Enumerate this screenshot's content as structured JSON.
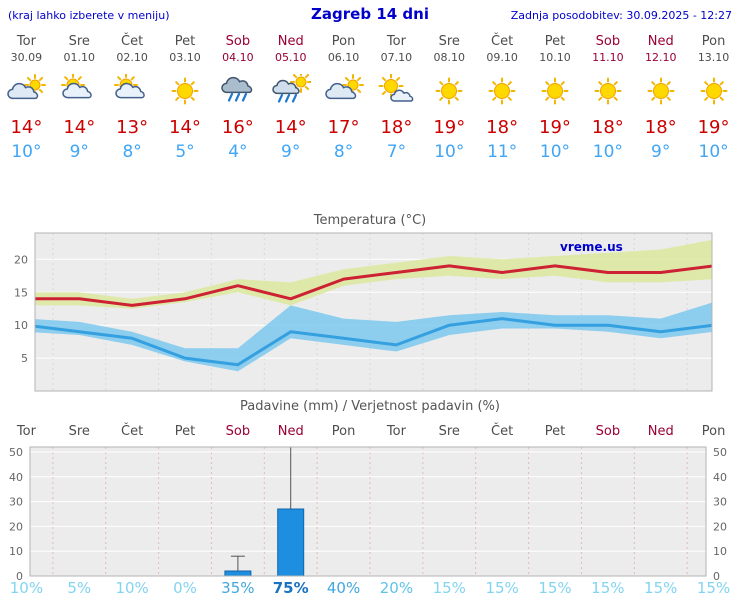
{
  "header": {
    "left_note": "(kraj lahko izberete v meniju)",
    "title": "Zagreb 14 dni",
    "updated": "Zadnja posodobitev: 30.09.2025 - 12:27"
  },
  "watermark": "vreme.us",
  "colors": {
    "accent_blue": "#0000cc",
    "weekend": "#990033",
    "weekday": "#4d4d4d",
    "high_temp": "#cc0000",
    "low_temp": "#3fa5f5",
    "temp_max_line": "#cc2233",
    "temp_min_line": "#35a0e0",
    "temp_max_band": "#dde9a2",
    "temp_min_band": "#7cc8ee",
    "bar_fill": "#1e8fe0",
    "bar_stroke": "#1266a8"
  },
  "days": [
    {
      "day": "Tor",
      "date": "30.09",
      "weekend": false,
      "icon": "mostly-cloudy",
      "high": 14,
      "low": 10
    },
    {
      "day": "Sre",
      "date": "01.10",
      "weekend": false,
      "icon": "partly-cloudy",
      "high": 14,
      "low": 9
    },
    {
      "day": "Čet",
      "date": "02.10",
      "weekend": false,
      "icon": "partly-cloudy",
      "high": 13,
      "low": 8
    },
    {
      "day": "Pet",
      "date": "03.10",
      "weekend": false,
      "icon": "sunny",
      "high": 14,
      "low": 5
    },
    {
      "day": "Sob",
      "date": "04.10",
      "weekend": true,
      "icon": "rain",
      "high": 16,
      "low": 4
    },
    {
      "day": "Ned",
      "date": "05.10",
      "weekend": true,
      "icon": "showers",
      "high": 14,
      "low": 9
    },
    {
      "day": "Pon",
      "date": "06.10",
      "weekend": false,
      "icon": "mostly-cloudy",
      "high": 17,
      "low": 8
    },
    {
      "day": "Tor",
      "date": "07.10",
      "weekend": false,
      "icon": "mostly-sunny",
      "high": 18,
      "low": 7
    },
    {
      "day": "Sre",
      "date": "08.10",
      "weekend": false,
      "icon": "sunny",
      "high": 19,
      "low": 10
    },
    {
      "day": "Čet",
      "date": "09.10",
      "weekend": false,
      "icon": "sunny",
      "high": 18,
      "low": 11
    },
    {
      "day": "Pet",
      "date": "10.10",
      "weekend": false,
      "icon": "sunny",
      "high": 19,
      "low": 10
    },
    {
      "day": "Sob",
      "date": "11.10",
      "weekend": true,
      "icon": "sunny",
      "high": 18,
      "low": 10
    },
    {
      "day": "Ned",
      "date": "12.10",
      "weekend": true,
      "icon": "sunny",
      "high": 18,
      "low": 9
    },
    {
      "day": "Pon",
      "date": "13.10",
      "weekend": false,
      "icon": "sunny",
      "high": 19,
      "low": 10
    }
  ],
  "chart_data": [
    {
      "type": "line",
      "title": "Temperatura (°C)",
      "categories": [
        "Tor 30.09",
        "Sre 01.10",
        "Čet 02.10",
        "Pet 03.10",
        "Sob 04.10",
        "Ned 05.10",
        "Pon 06.10",
        "Tor 07.10",
        "Sre 08.10",
        "Čet 09.10",
        "Pet 10.10",
        "Sob 11.10",
        "Ned 12.10",
        "Pon 13.10"
      ],
      "ylim": [
        0,
        24
      ],
      "yticks": [
        5,
        10,
        15,
        20
      ],
      "grid": true,
      "legend": "none",
      "series": [
        {
          "name": "max_temp",
          "values": [
            14,
            14,
            13,
            14,
            16,
            14,
            17,
            18,
            19,
            18,
            19,
            18,
            18,
            19
          ]
        },
        {
          "name": "min_temp",
          "values": [
            10,
            9,
            8,
            5,
            4,
            9,
            8,
            7,
            10,
            11,
            10,
            10,
            9,
            10
          ]
        },
        {
          "name": "max_range_upper",
          "values": [
            15,
            15,
            14,
            15,
            17,
            16.5,
            18.5,
            19.5,
            20.5,
            20,
            20.5,
            21,
            21.5,
            23
          ]
        },
        {
          "name": "max_range_lower",
          "values": [
            13,
            13,
            12.5,
            13.5,
            15,
            13,
            16,
            17,
            17.5,
            17,
            17.5,
            16.5,
            16.5,
            17
          ]
        },
        {
          "name": "min_range_upper",
          "values": [
            11,
            10.5,
            9,
            6.5,
            6.5,
            13,
            11,
            10.5,
            11.5,
            12,
            11.5,
            11.5,
            11,
            13.5
          ]
        },
        {
          "name": "min_range_lower",
          "values": [
            9,
            8.5,
            7,
            4.5,
            3,
            8,
            7,
            6,
            8.5,
            9.5,
            9.5,
            9,
            8,
            9
          ]
        }
      ]
    },
    {
      "type": "bar",
      "title": "Padavine (mm) / Verjetnost padavin (%)",
      "categories": [
        "Tor",
        "Sre",
        "Čet",
        "Pet",
        "Sob",
        "Ned",
        "Pon",
        "Tor",
        "Sre",
        "Čet",
        "Pet",
        "Sob",
        "Ned",
        "Pon"
      ],
      "ylim": [
        0,
        52
      ],
      "yticks": [
        0,
        10,
        20,
        30,
        40,
        50
      ],
      "precip_mm": [
        0,
        0,
        0,
        0,
        2,
        27,
        0,
        0,
        0,
        0,
        0,
        0,
        0,
        0
      ],
      "precip_max_mm": [
        0,
        0,
        0,
        0,
        8,
        52,
        0,
        0,
        0,
        0,
        0,
        0,
        0,
        0
      ],
      "probability_pct": [
        10,
        5,
        10,
        0,
        35,
        75,
        40,
        20,
        15,
        15,
        15,
        15,
        15,
        15
      ],
      "probability_colors": [
        "#82d4f0",
        "#82d4f0",
        "#82d4f0",
        "#82d4f0",
        "#41a7de",
        "#1b72c1",
        "#41a7de",
        "#5fc2e9",
        "#82d4f0",
        "#82d4f0",
        "#82d4f0",
        "#82d4f0",
        "#82d4f0",
        "#82d4f0"
      ]
    }
  ]
}
